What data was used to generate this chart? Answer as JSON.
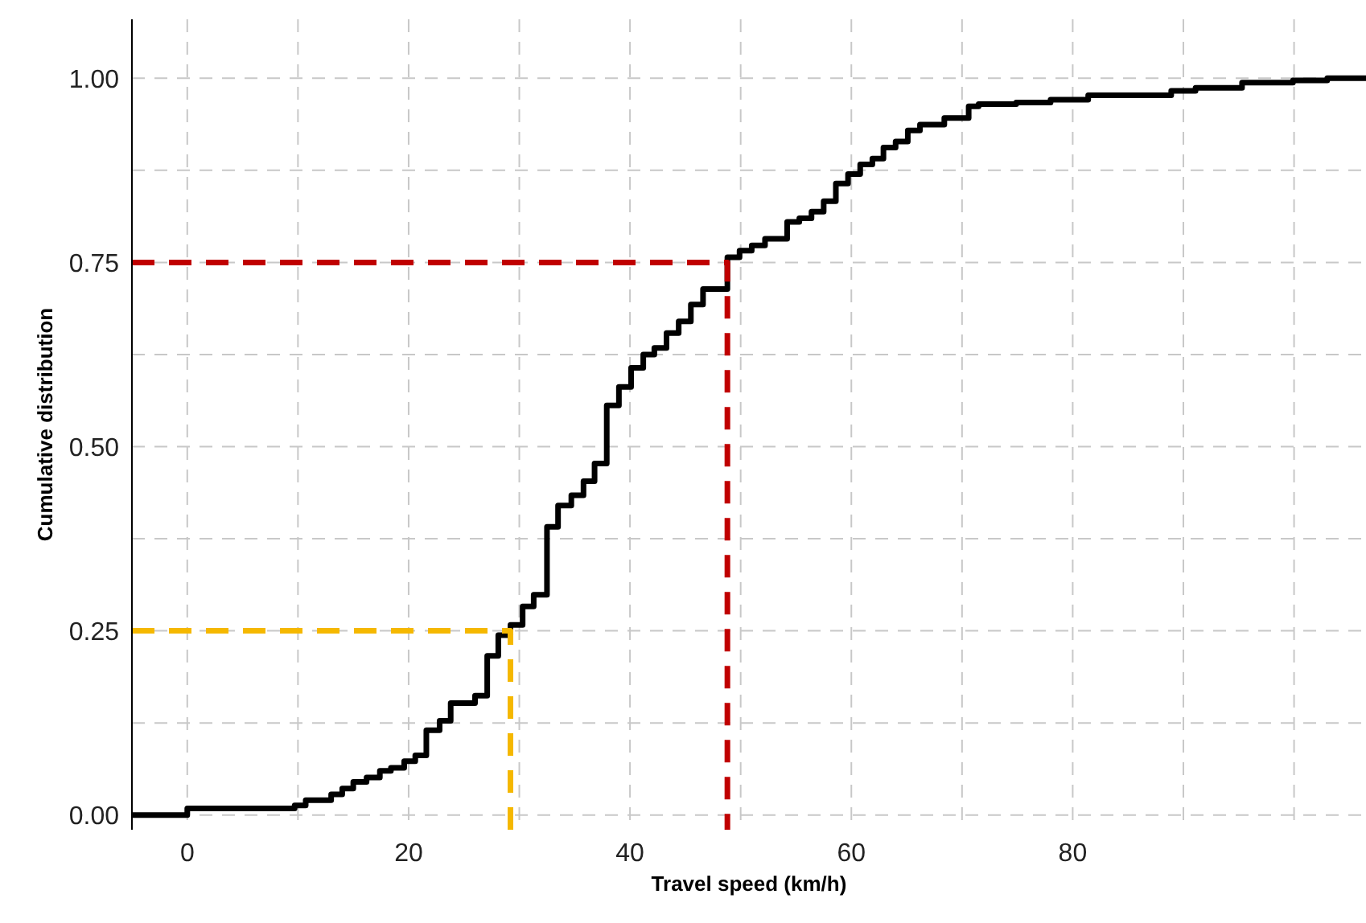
{
  "chart_data": {
    "type": "step",
    "xlabel": "Travel speed (km/h)",
    "ylabel": "Cumulative distribution",
    "xlim": [
      -5,
      106.5
    ],
    "ylim": [
      -0.02,
      1.08
    ],
    "xticks": [
      0,
      {
        "value": 10,
        "label": null
      },
      20,
      {
        "value": 30,
        "label": null
      },
      40,
      {
        "value": 50,
        "label": null
      },
      60,
      {
        "value": 70,
        "label": null
      },
      80,
      {
        "value": 90,
        "label": null
      },
      {
        "value": 100,
        "label": null
      }
    ],
    "yticks": [
      {
        "value": 0,
        "label": "0.00"
      },
      {
        "value": 0.125,
        "label": null
      },
      {
        "value": 0.25,
        "label": "0.25"
      },
      {
        "value": 0.375,
        "label": null
      },
      {
        "value": 0.5,
        "label": "0.50"
      },
      {
        "value": 0.625,
        "label": null
      },
      {
        "value": 0.75,
        "label": "0.75"
      },
      {
        "value": 0.875,
        "label": null
      },
      {
        "value": 1,
        "label": "1.00"
      }
    ],
    "grid": true,
    "line_style": "solid",
    "marker": "none",
    "series": [
      {
        "color": "#000000",
        "x": [
          -5,
          0,
          9.7,
          10.7,
          13,
          14,
          15,
          16.2,
          17.4,
          18.4,
          19.6,
          20.6,
          21.6,
          22.8,
          23.8,
          26,
          27.1,
          28.1,
          29.2,
          30.3,
          31.3,
          32.5,
          33.5,
          34.7,
          35.8,
          36.8,
          37.9,
          39,
          40.1,
          41.2,
          42.2,
          43.3,
          44.4,
          45.5,
          46.6,
          48.8,
          49.9,
          51,
          52.2,
          54.2,
          55.3,
          56.4,
          57.5,
          58.6,
          59.7,
          60.8,
          61.9,
          62.9,
          64,
          65.1,
          66.2,
          68.4,
          70.6,
          71.5,
          74.9,
          78,
          81.4,
          88.9,
          91.1,
          95.3,
          99.9,
          103,
          106.5
        ],
        "values": [
          0,
          0.009,
          0.013,
          0.02,
          0.028,
          0.036,
          0.045,
          0.051,
          0.06,
          0.064,
          0.073,
          0.081,
          0.115,
          0.128,
          0.152,
          0.162,
          0.216,
          0.244,
          0.258,
          0.283,
          0.299,
          0.391,
          0.42,
          0.434,
          0.453,
          0.477,
          0.556,
          0.581,
          0.607,
          0.625,
          0.634,
          0.654,
          0.67,
          0.693,
          0.714,
          0.757,
          0.766,
          0.773,
          0.782,
          0.805,
          0.81,
          0.819,
          0.833,
          0.857,
          0.87,
          0.883,
          0.891,
          0.906,
          0.914,
          0.929,
          0.937,
          0.946,
          0.962,
          0.965,
          0.967,
          0.971,
          0.977,
          0.983,
          0.987,
          0.994,
          0.997,
          1,
          1
        ]
      },
      {
        "type": "line",
        "line_style": "dashed",
        "color": "#f5b800",
        "x": [
          -5,
          29.2,
          29.2
        ],
        "values": [
          0.25,
          0.25,
          -0.02
        ]
      },
      {
        "type": "line",
        "line_style": "dashed",
        "color": "#c00000",
        "x": [
          -5,
          48.8,
          48.8
        ],
        "values": [
          0.75,
          0.75,
          -0.02
        ]
      }
    ]
  }
}
